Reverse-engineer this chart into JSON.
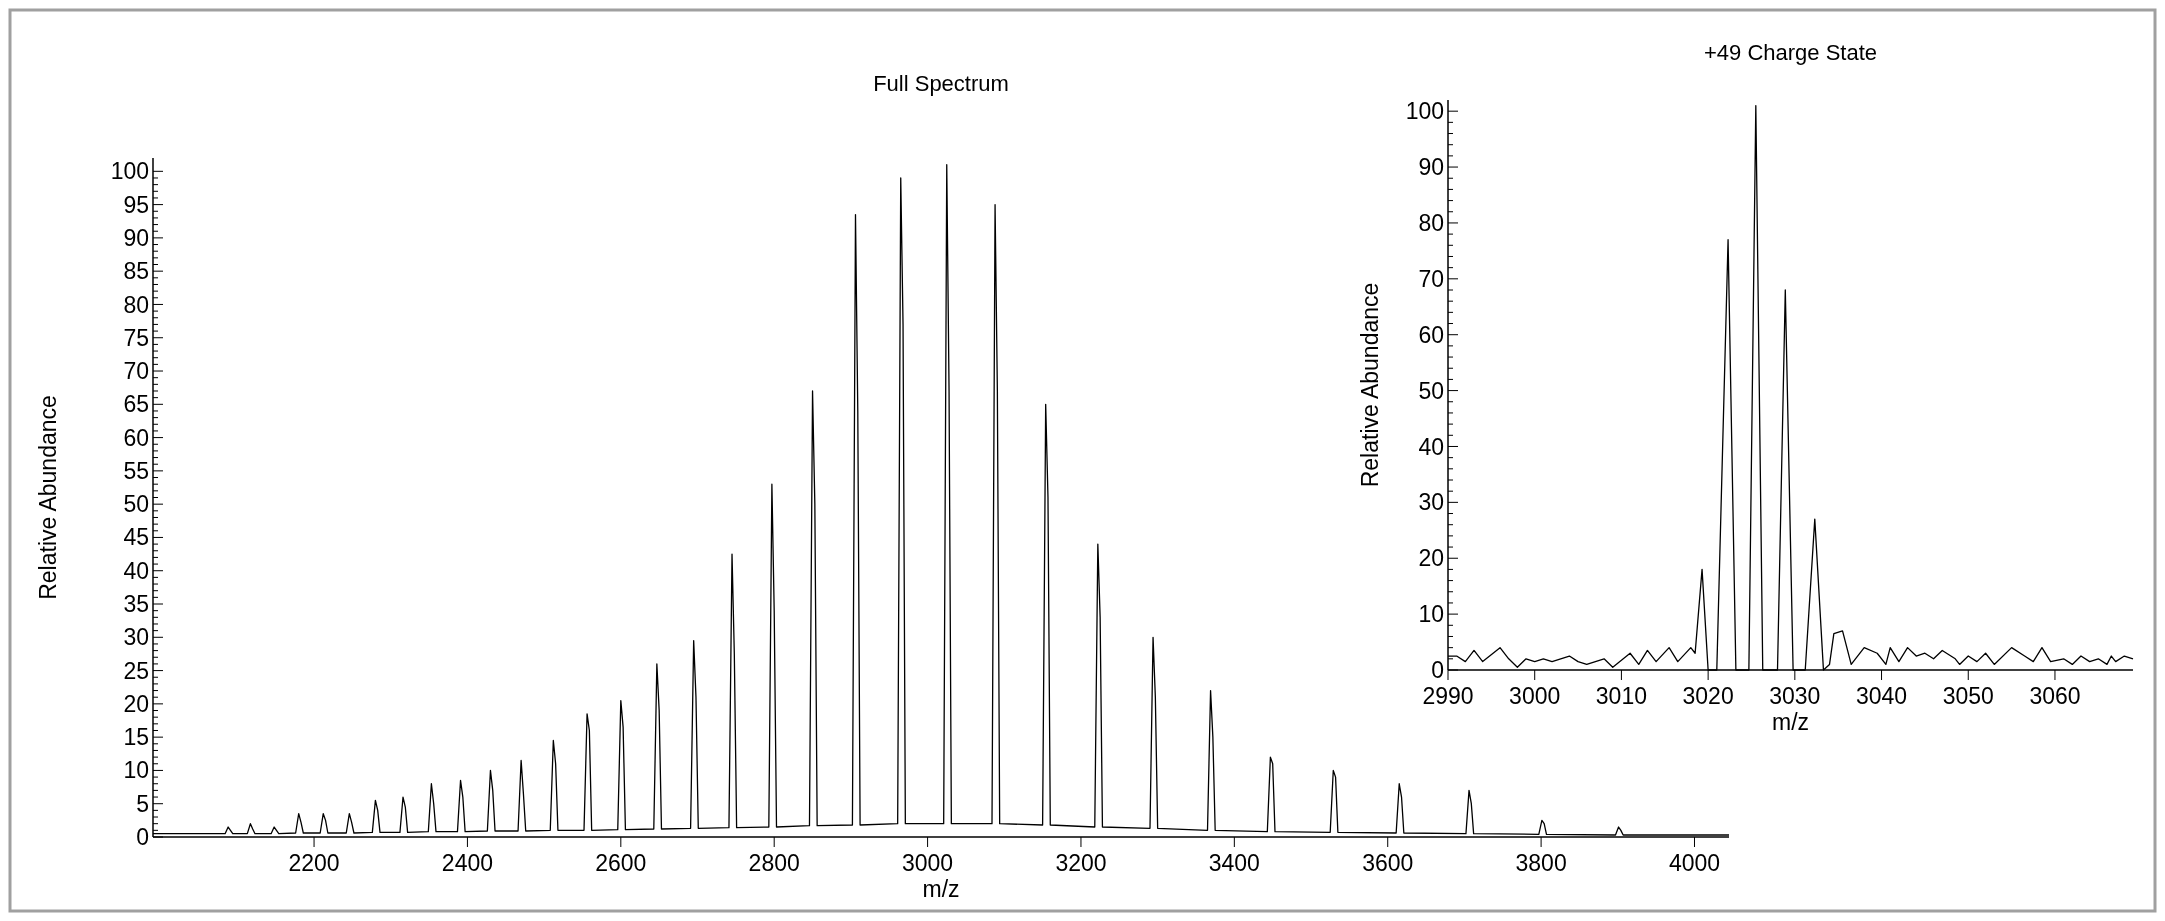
{
  "chart_data": [
    {
      "type": "line",
      "title": "Full Spectrum",
      "xlabel": "m/z",
      "ylabel": "Relative Abundance",
      "xlim": [
        1990,
        4045
      ],
      "ylim": [
        0,
        102
      ],
      "xticks": [
        2200,
        2400,
        2600,
        2800,
        3000,
        3200,
        3400,
        3600,
        3800,
        4000
      ],
      "yticks": [
        0,
        5,
        10,
        15,
        20,
        25,
        30,
        35,
        40,
        45,
        50,
        55,
        60,
        65,
        70,
        75,
        80,
        85,
        90,
        95,
        100
      ],
      "grid": false,
      "marker": "none",
      "line_style": "solid",
      "series": [
        {
          "color": "#000000",
          "x": [
            1990,
            2040,
            2084,
            2088,
            2091,
            2094,
            2113,
            2117,
            2120,
            2123,
            2144,
            2148,
            2151,
            2154,
            2176,
            2180,
            2183,
            2186,
            2208,
            2212,
            2215,
            2218,
            2242,
            2246,
            2249,
            2252,
            2276,
            2280,
            2283,
            2286,
            2312,
            2316,
            2319,
            2322,
            2349,
            2353,
            2356,
            2359,
            2387,
            2391,
            2394,
            2397,
            2426,
            2430,
            2433,
            2436,
            2466,
            2470,
            2473,
            2476,
            2508,
            2512,
            2515,
            2518,
            2552,
            2556,
            2559,
            2562,
            2596,
            2600,
            2603,
            2606,
            2643,
            2647,
            2650,
            2653,
            2691,
            2695,
            2698,
            2701,
            2741,
            2745,
            2748,
            2751,
            2793,
            2797,
            2800,
            2803,
            2846,
            2850,
            2853,
            2856,
            2902,
            2906,
            2909,
            2912,
            2961,
            2965,
            2968,
            2971,
            3021,
            3025,
            3028,
            3031,
            3084,
            3088,
            3091,
            3094,
            3150,
            3154,
            3157,
            3160,
            3218,
            3222,
            3225,
            3228,
            3290,
            3294,
            3297,
            3300,
            3365,
            3369,
            3372,
            3375,
            3443,
            3447,
            3450,
            3453,
            3525,
            3529,
            3532,
            3535,
            3611,
            3615,
            3618,
            3621,
            3702,
            3706,
            3709,
            3712,
            3797,
            3801,
            3804,
            3807,
            3897,
            3901,
            3904,
            3907,
            4045
          ],
          "values": [
            0.5,
            0.5,
            0.5,
            1.5,
            1,
            0.5,
            0.5,
            2,
            1.2,
            0.5,
            0.5,
            1.5,
            1,
            0.5,
            0.6,
            3.5,
            2.2,
            0.6,
            0.6,
            3.5,
            2.5,
            0.6,
            0.6,
            3.5,
            2.2,
            0.6,
            0.7,
            5.5,
            4,
            0.7,
            0.7,
            6,
            4.5,
            0.7,
            0.8,
            8,
            5,
            0.8,
            0.8,
            8.5,
            6,
            0.8,
            0.9,
            10,
            7,
            0.9,
            0.9,
            11.5,
            6.5,
            0.9,
            1,
            14.5,
            11,
            1,
            1,
            18.5,
            16,
            1,
            1.1,
            20.5,
            16.5,
            1.1,
            1.2,
            26,
            19,
            1.2,
            1.3,
            29.5,
            21,
            1.3,
            1.4,
            42.5,
            27.5,
            1.4,
            1.5,
            53,
            34,
            1.5,
            1.7,
            67,
            50,
            1.7,
            1.8,
            93.5,
            64,
            1.8,
            2,
            99,
            77,
            2,
            2,
            101,
            67,
            2,
            2,
            95,
            67,
            2,
            1.8,
            65,
            51,
            1.8,
            1.5,
            44,
            33,
            1.5,
            1.3,
            30,
            21,
            1.3,
            1,
            22,
            15,
            1,
            0.8,
            12,
            11,
            0.8,
            0.7,
            10,
            9,
            0.7,
            0.6,
            8,
            6,
            0.6,
            0.5,
            7,
            5,
            0.5,
            0.4,
            2.5,
            2,
            0.4,
            0.3,
            1.5,
            1,
            0.3,
            0.3
          ]
        }
      ]
    },
    {
      "type": "line",
      "title": "+49 Charge State",
      "xlabel": "m/z",
      "ylabel": "Relative Abundance",
      "xlim": [
        2990,
        3069
      ],
      "ylim": [
        0,
        102
      ],
      "xticks": [
        2990,
        3000,
        3010,
        3020,
        3030,
        3040,
        3050,
        3060
      ],
      "yticks": [
        0,
        10,
        20,
        30,
        40,
        50,
        60,
        70,
        80,
        90,
        100
      ],
      "grid": false,
      "marker": "none",
      "line_style": "solid",
      "series": [
        {
          "color": "#000000",
          "x": [
            2990,
            2991,
            2992,
            2993,
            2994,
            2996,
            2997,
            2998,
            2999,
            3000,
            3001,
            3002,
            3004,
            3005,
            3006,
            3008,
            3009,
            3011,
            3012,
            3013,
            3014,
            3015.5,
            3016.5,
            3018,
            3018.5,
            3019.3,
            3020,
            3021,
            3022.3,
            3023.2,
            3024.7,
            3025.5,
            3026.3,
            3028,
            3028.9,
            3029.8,
            3031.2,
            3032.3,
            3033.3,
            3034,
            3034.5,
            3035.5,
            3036.5,
            3038,
            3039.5,
            3040.5,
            3041,
            3042,
            3043,
            3044,
            3045,
            3046,
            3047,
            3048.5,
            3049,
            3050,
            3051,
            3052,
            3053,
            3055,
            3056.5,
            3057.5,
            3058.5,
            3059.5,
            3061,
            3062,
            3063,
            3064,
            3065,
            3066,
            3066.5,
            3067,
            3068,
            3069
          ],
          "values": [
            2.5,
            2.5,
            1.5,
            3.5,
            1.5,
            4,
            2,
            0.5,
            2,
            1.5,
            2,
            1.5,
            2.5,
            1.5,
            1,
            2,
            0.5,
            3,
            1,
            3.5,
            1.5,
            4,
            1.5,
            4,
            3,
            18,
            0,
            0,
            77,
            0,
            0,
            101,
            0,
            0,
            68,
            0,
            0,
            27,
            0,
            1,
            6.5,
            7,
            1,
            4,
            3,
            1,
            4,
            1.5,
            4,
            2.5,
            3,
            2,
            3.5,
            2,
            1,
            2.5,
            1.5,
            3,
            1,
            4,
            2.5,
            1.5,
            4,
            1.5,
            2,
            1,
            2.5,
            1.5,
            2,
            1,
            2.5,
            1.5,
            2.5,
            2
          ]
        }
      ]
    }
  ]
}
